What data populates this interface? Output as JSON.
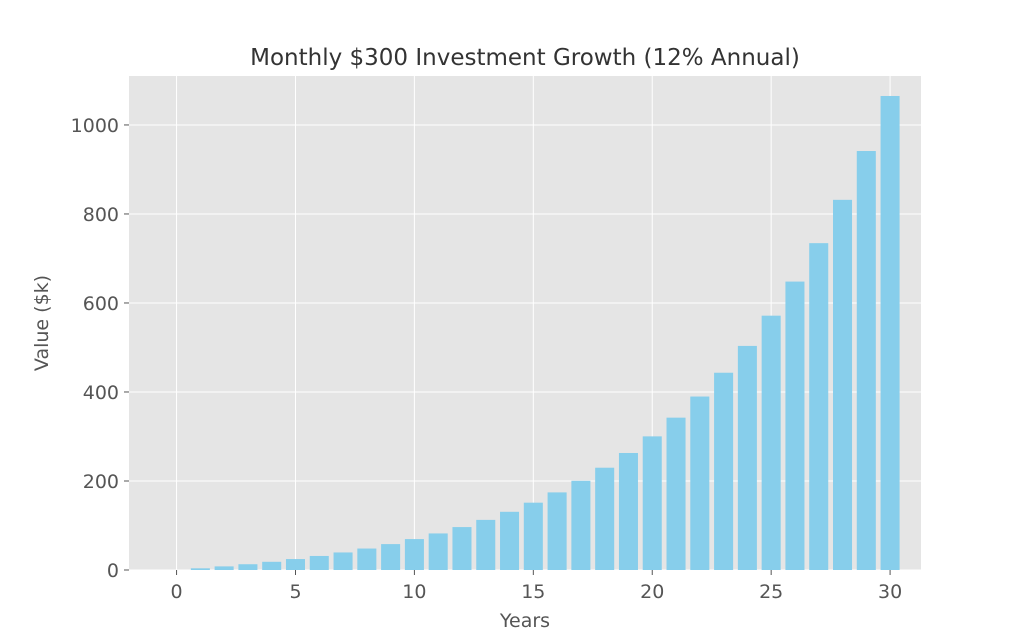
{
  "chart_data": {
    "type": "bar",
    "title": "Monthly $300 Investment Growth (12% Annual)",
    "xlabel": "Years",
    "ylabel": "Value ($k)",
    "x": [
      1,
      2,
      3,
      4,
      5,
      6,
      7,
      8,
      9,
      10,
      11,
      12,
      13,
      14,
      15,
      16,
      17,
      18,
      19,
      20,
      21,
      22,
      23,
      24,
      25,
      26,
      27,
      28,
      29,
      30
    ],
    "values": [
      3.81,
      8.11,
      12.96,
      18.42,
      24.59,
      31.55,
      39.4,
      48.24,
      58.22,
      69.47,
      82.16,
      96.46,
      112.59,
      130.78,
      151.27,
      174.38,
      200.43,
      229.81,
      262.91,
      300.24,
      342.32,
      389.76,
      443.24,
      503.51,
      571.46,
      648.07,
      734.41,
      831.73,
      941.43,
      1065.09
    ],
    "xlim": [
      -2,
      31.3
    ],
    "ylim": [
      0,
      1110
    ],
    "xticks": [
      0,
      5,
      10,
      15,
      20,
      25,
      30
    ],
    "yticks": [
      0,
      200,
      400,
      600,
      800,
      1000
    ],
    "grid": true,
    "colors": {
      "bar": "#87CEEB",
      "plot_background": "#E5E5E5",
      "grid": "#FFFFFF",
      "tick": "#555555"
    }
  }
}
